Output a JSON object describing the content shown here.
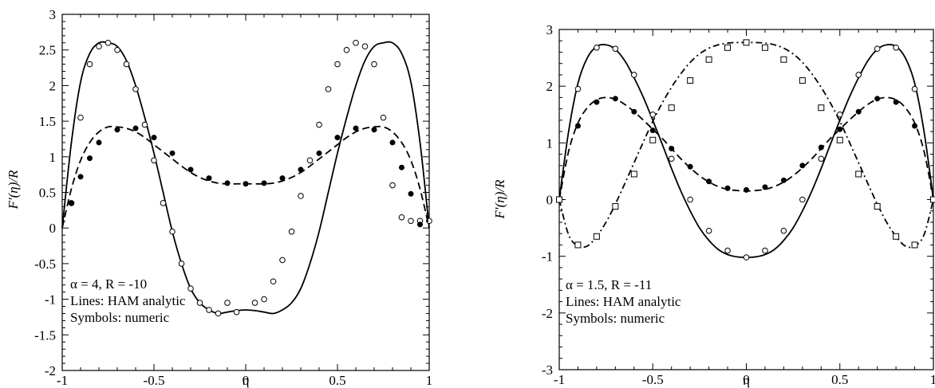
{
  "chart_data": [
    {
      "type": "line",
      "xlabel": "η",
      "ylabel": "F′(η)/R",
      "xlim": [
        -1,
        1
      ],
      "ylim": [
        -2,
        3
      ],
      "xticks": [
        -1,
        -0.5,
        0,
        0.5,
        1
      ],
      "xtick_labels": [
        "-1",
        "-0.5",
        "0",
        "0.5",
        "1"
      ],
      "yticks": [
        -2,
        -1.5,
        -1,
        -0.5,
        0,
        0.5,
        1,
        1.5,
        2,
        2.5,
        3
      ],
      "ytick_labels": [
        "-2",
        "-1.5",
        "-1",
        "-0.5",
        "0",
        "0.5",
        "1",
        "1.5",
        "2",
        "2.5",
        "3"
      ],
      "grid": false,
      "annotations": [
        "α = 4, R = -10",
        "Lines: HAM analytic",
        "Symbols: numeric"
      ],
      "series": [
        {
          "style": "solid",
          "marker": "open-circle",
          "x": [
            -1,
            -0.95,
            -0.9,
            -0.85,
            -0.8,
            -0.75,
            -0.7,
            -0.65,
            -0.6,
            -0.55,
            -0.5,
            -0.45,
            -0.4,
            -0.35,
            -0.3,
            -0.25,
            -0.2,
            -0.15,
            -0.1,
            -0.05,
            0,
            0.05,
            0.1,
            0.15,
            0.2,
            0.25,
            0.3,
            0.35,
            0.4,
            0.45,
            0.5,
            0.55,
            0.6,
            0.65,
            0.7,
            0.75,
            0.8,
            0.85,
            0.9,
            0.95,
            1
          ],
          "y": [
            0,
            1.2,
            2.05,
            2.45,
            2.6,
            2.6,
            2.55,
            2.35,
            2.0,
            1.55,
            1.05,
            0.5,
            -0.05,
            -0.5,
            -0.85,
            -1.05,
            -1.15,
            -1.2,
            -1.18,
            -1.16,
            -1.15,
            -1.16,
            -1.18,
            -1.2,
            -1.15,
            -1.05,
            -0.85,
            -0.5,
            -0.05,
            0.5,
            1.05,
            1.55,
            2.0,
            2.35,
            2.55,
            2.6,
            2.6,
            2.45,
            2.05,
            1.2,
            0
          ],
          "markers_x": [
            -0.95,
            -0.9,
            -0.85,
            -0.8,
            -0.75,
            -0.7,
            -0.65,
            -0.6,
            -0.55,
            -0.5,
            -0.45,
            -0.4,
            -0.35,
            -0.3,
            -0.25,
            -0.2,
            -0.15,
            -0.1,
            -0.05,
            0.05,
            0.1,
            0.15,
            0.2,
            0.25,
            0.3,
            0.35,
            0.4,
            0.45,
            0.5,
            0.55,
            0.6,
            0.65,
            0.7,
            0.75,
            0.8,
            0.85,
            0.9,
            0.95,
            1
          ],
          "markers_y": [
            0.35,
            1.55,
            2.3,
            2.55,
            2.6,
            2.5,
            2.3,
            1.95,
            1.45,
            0.95,
            0.35,
            -0.05,
            -0.5,
            -0.85,
            -1.05,
            -1.15,
            -1.2,
            -1.05,
            -1.18,
            -1.05,
            -1.0,
            -0.75,
            -0.45,
            -0.05,
            0.45,
            0.95,
            1.45,
            1.95,
            2.3,
            2.5,
            2.6,
            2.55,
            2.3,
            1.55,
            0.6,
            0.15,
            0.1,
            0.1,
            0.1
          ]
        },
        {
          "style": "dashed",
          "marker": "filled-circle",
          "x": [
            -1,
            -0.95,
            -0.9,
            -0.85,
            -0.8,
            -0.75,
            -0.7,
            -0.65,
            -0.6,
            -0.55,
            -0.5,
            -0.45,
            -0.4,
            -0.35,
            -0.3,
            -0.25,
            -0.2,
            -0.15,
            -0.1,
            -0.05,
            0,
            0.05,
            0.1,
            0.15,
            0.2,
            0.25,
            0.3,
            0.35,
            0.4,
            0.45,
            0.5,
            0.55,
            0.6,
            0.65,
            0.7,
            0.75,
            0.8,
            0.85,
            0.9,
            0.95,
            1
          ],
          "y": [
            0,
            0.55,
            0.95,
            1.2,
            1.35,
            1.42,
            1.42,
            1.4,
            1.35,
            1.27,
            1.17,
            1.07,
            0.97,
            0.87,
            0.78,
            0.71,
            0.66,
            0.63,
            0.62,
            0.62,
            0.62,
            0.62,
            0.62,
            0.63,
            0.66,
            0.71,
            0.78,
            0.87,
            0.97,
            1.07,
            1.17,
            1.27,
            1.35,
            1.4,
            1.42,
            1.42,
            1.35,
            1.2,
            0.95,
            0.55,
            0
          ],
          "markers_x": [
            -0.95,
            -0.9,
            -0.85,
            -0.8,
            -0.7,
            -0.6,
            -0.5,
            -0.4,
            -0.3,
            -0.2,
            -0.1,
            0,
            0.1,
            0.2,
            0.3,
            0.4,
            0.5,
            0.6,
            0.7,
            0.8,
            0.85,
            0.9,
            0.95
          ],
          "markers_y": [
            0.35,
            0.72,
            0.98,
            1.2,
            1.38,
            1.4,
            1.27,
            1.05,
            0.82,
            0.7,
            0.63,
            0.62,
            0.63,
            0.7,
            0.82,
            1.05,
            1.27,
            1.4,
            1.38,
            1.2,
            0.85,
            0.48,
            0.05
          ]
        }
      ]
    },
    {
      "type": "line",
      "xlabel": "η",
      "ylabel": "F′(η)/R",
      "xlim": [
        -1,
        1
      ],
      "ylim": [
        -3,
        3
      ],
      "xticks": [
        -1,
        -0.5,
        0,
        0.5,
        1
      ],
      "xtick_labels": [
        "-1",
        "-0.5",
        "0",
        "0.5",
        "1"
      ],
      "yticks": [
        -3,
        -2,
        -1,
        0,
        1,
        2,
        3
      ],
      "ytick_labels": [
        "-3",
        "-2",
        "-1",
        "0",
        "1",
        "2",
        "3"
      ],
      "grid": false,
      "annotations": [
        "α = 1.5, R = -11",
        "Lines: HAM analytic",
        "Symbols: numeric"
      ],
      "series": [
        {
          "style": "solid",
          "marker": "open-circle",
          "x": [
            -1,
            -0.95,
            -0.9,
            -0.85,
            -0.8,
            -0.75,
            -0.7,
            -0.65,
            -0.6,
            -0.55,
            -0.5,
            -0.45,
            -0.4,
            -0.35,
            -0.3,
            -0.25,
            -0.2,
            -0.15,
            -0.1,
            -0.05,
            0,
            0.05,
            0.1,
            0.15,
            0.2,
            0.25,
            0.3,
            0.35,
            0.4,
            0.45,
            0.5,
            0.55,
            0.6,
            0.65,
            0.7,
            0.75,
            0.8,
            0.85,
            0.9,
            0.95,
            1
          ],
          "y": [
            0,
            1.2,
            2.05,
            2.5,
            2.7,
            2.73,
            2.65,
            2.45,
            2.15,
            1.8,
            1.4,
            0.98,
            0.55,
            0.15,
            -0.2,
            -0.5,
            -0.72,
            -0.88,
            -0.97,
            -1.01,
            -1.02,
            -1.01,
            -0.97,
            -0.88,
            -0.72,
            -0.5,
            -0.2,
            0.15,
            0.55,
            0.98,
            1.4,
            1.8,
            2.15,
            2.45,
            2.65,
            2.73,
            2.7,
            2.5,
            2.05,
            1.2,
            0
          ],
          "markers_x": [
            -1,
            -0.9,
            -0.8,
            -0.7,
            -0.6,
            -0.5,
            -0.4,
            -0.3,
            -0.2,
            -0.1,
            0,
            0.1,
            0.2,
            0.3,
            0.4,
            0.5,
            0.6,
            0.7,
            0.8,
            0.9
          ],
          "markers_y": [
            0,
            1.95,
            2.68,
            2.66,
            2.2,
            1.5,
            0.72,
            0.0,
            -0.55,
            -0.9,
            -1.02,
            -0.9,
            -0.55,
            0.0,
            0.72,
            1.5,
            2.2,
            2.66,
            2.68,
            1.95
          ]
        },
        {
          "style": "dashed",
          "marker": "filled-circle",
          "x": [
            -1,
            -0.95,
            -0.9,
            -0.85,
            -0.8,
            -0.75,
            -0.7,
            -0.65,
            -0.6,
            -0.55,
            -0.5,
            -0.45,
            -0.4,
            -0.35,
            -0.3,
            -0.25,
            -0.2,
            -0.15,
            -0.1,
            -0.05,
            0,
            0.05,
            0.1,
            0.15,
            0.2,
            0.25,
            0.3,
            0.35,
            0.4,
            0.45,
            0.5,
            0.55,
            0.6,
            0.65,
            0.7,
            0.75,
            0.8,
            0.85,
            0.9,
            0.95,
            1
          ],
          "y": [
            0,
            0.85,
            1.35,
            1.62,
            1.76,
            1.8,
            1.77,
            1.68,
            1.55,
            1.4,
            1.24,
            1.08,
            0.9,
            0.72,
            0.56,
            0.42,
            0.31,
            0.23,
            0.18,
            0.16,
            0.15,
            0.16,
            0.18,
            0.23,
            0.31,
            0.42,
            0.56,
            0.72,
            0.9,
            1.08,
            1.24,
            1.4,
            1.55,
            1.68,
            1.77,
            1.8,
            1.76,
            1.62,
            1.35,
            0.85,
            0
          ],
          "markers_x": [
            -0.9,
            -0.8,
            -0.7,
            -0.6,
            -0.5,
            -0.4,
            -0.3,
            -0.2,
            -0.1,
            0,
            0.1,
            0.2,
            0.3,
            0.4,
            0.5,
            0.6,
            0.7,
            0.8,
            0.9
          ],
          "markers_y": [
            1.3,
            1.72,
            1.78,
            1.55,
            1.22,
            0.9,
            0.58,
            0.32,
            0.2,
            0.17,
            0.22,
            0.34,
            0.6,
            0.92,
            1.24,
            1.55,
            1.78,
            1.72,
            1.3
          ]
        },
        {
          "style": "dash-dot",
          "marker": "open-square",
          "x": [
            -1,
            -0.95,
            -0.9,
            -0.85,
            -0.8,
            -0.75,
            -0.7,
            -0.65,
            -0.6,
            -0.55,
            -0.5,
            -0.45,
            -0.4,
            -0.35,
            -0.3,
            -0.25,
            -0.2,
            -0.15,
            -0.1,
            -0.05,
            0,
            0.05,
            0.1,
            0.15,
            0.2,
            0.25,
            0.3,
            0.35,
            0.4,
            0.45,
            0.5,
            0.55,
            0.6,
            0.65,
            0.7,
            0.75,
            0.8,
            0.85,
            0.9,
            0.95,
            1
          ],
          "y": [
            0,
            -0.62,
            -0.82,
            -0.82,
            -0.65,
            -0.4,
            -0.08,
            0.28,
            0.65,
            1.02,
            1.38,
            1.7,
            1.98,
            2.22,
            2.42,
            2.57,
            2.67,
            2.73,
            2.76,
            2.77,
            2.77,
            2.77,
            2.76,
            2.73,
            2.67,
            2.57,
            2.42,
            2.22,
            1.98,
            1.7,
            1.38,
            1.02,
            0.65,
            0.28,
            -0.08,
            -0.4,
            -0.65,
            -0.82,
            -0.82,
            -0.62,
            0
          ],
          "markers_x": [
            -1,
            -0.9,
            -0.8,
            -0.7,
            -0.6,
            -0.5,
            -0.4,
            -0.3,
            -0.2,
            -0.1,
            0,
            0.1,
            0.2,
            0.3,
            0.4,
            0.5,
            0.6,
            0.7,
            0.8,
            0.9,
            1
          ],
          "markers_y": [
            0,
            -0.8,
            -0.65,
            -0.12,
            0.45,
            1.05,
            1.62,
            2.1,
            2.47,
            2.68,
            2.77,
            2.68,
            2.47,
            2.1,
            1.62,
            1.05,
            0.45,
            -0.12,
            -0.65,
            -0.8,
            0
          ]
        }
      ]
    }
  ]
}
